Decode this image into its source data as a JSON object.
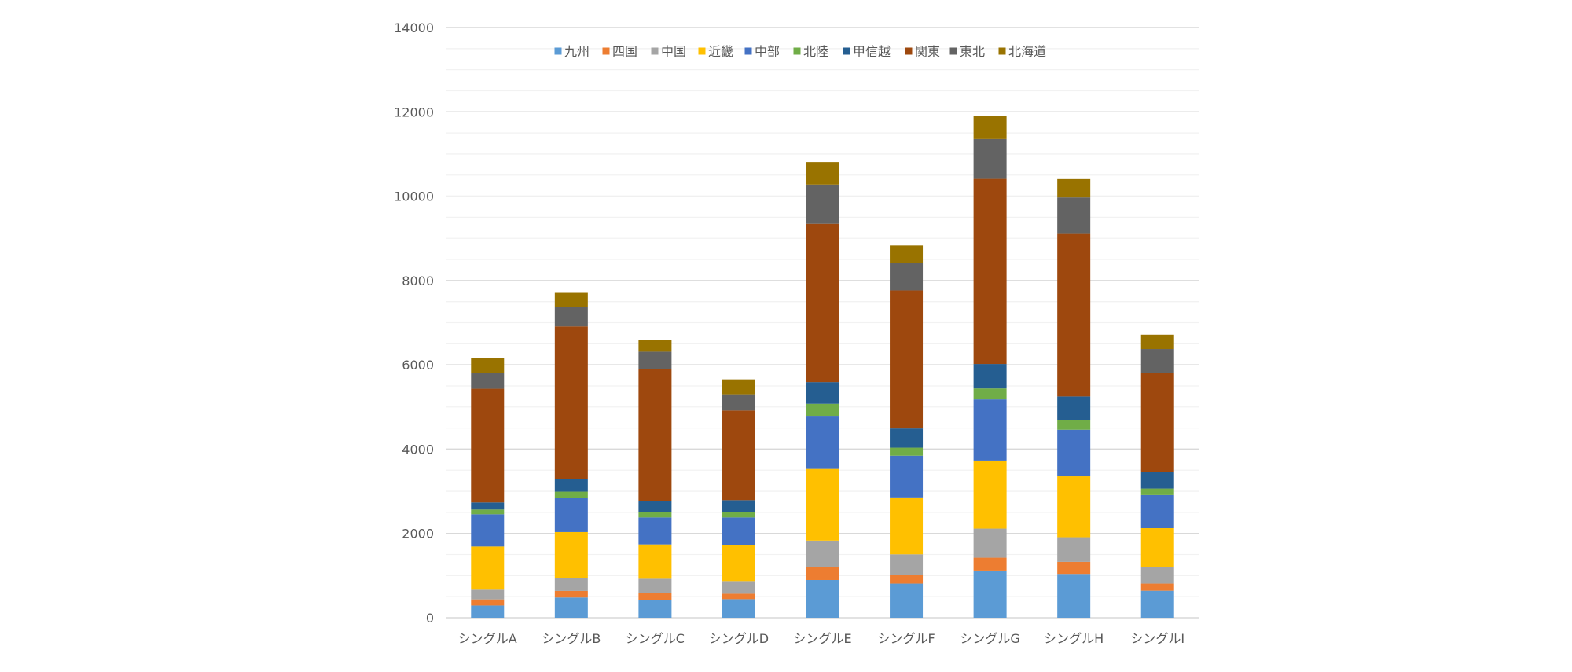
{
  "chart_data": {
    "type": "bar",
    "stacked": true,
    "title": "",
    "xlabel": "",
    "ylabel": "",
    "ylim": [
      0,
      14000
    ],
    "yticks": [
      0,
      2000,
      4000,
      6000,
      8000,
      10000,
      12000,
      14000
    ],
    "ytick_labels": [
      "0",
      "2000",
      "4000",
      "6000",
      "8000",
      "10000",
      "12000",
      "14000"
    ],
    "minor_gridline_step": 500,
    "grid": true,
    "legend_position": "top",
    "categories": [
      "シングルA",
      "シングルB",
      "シングルC",
      "シングルD",
      "シングルE",
      "シングルF",
      "シングルG",
      "シングルH",
      "シングルI"
    ],
    "series": [
      {
        "name": "九州",
        "color": "#5B9BD5",
        "values": [
          290,
          480,
          420,
          440,
          895,
          810,
          1120,
          1040,
          640
        ]
      },
      {
        "name": "四国",
        "color": "#ED7D31",
        "values": [
          145,
          155,
          165,
          130,
          305,
          215,
          305,
          285,
          170
        ]
      },
      {
        "name": "中国",
        "color": "#A5A5A5",
        "values": [
          230,
          298,
          340,
          300,
          630,
          480,
          690,
          585,
          400
        ]
      },
      {
        "name": "近畿",
        "color": "#FFC000",
        "values": [
          1025,
          1100,
          815,
          852,
          1700,
          1350,
          1615,
          1445,
          915
        ]
      },
      {
        "name": "中部",
        "color": "#4472C4",
        "values": [
          765,
          809,
          640,
          658,
          1260,
          990,
          1450,
          1105,
          785
        ]
      },
      {
        "name": "北陸",
        "color": "#70AD47",
        "values": [
          112,
          149,
          130,
          130,
          285,
          190,
          260,
          230,
          155
        ]
      },
      {
        "name": "甲信越",
        "color": "#255E91",
        "values": [
          168,
          291,
          255,
          280,
          515,
          455,
          580,
          560,
          400
        ]
      },
      {
        "name": "関東",
        "color": "#9E480E",
        "values": [
          2698,
          3630,
          3143,
          2125,
          3755,
          3275,
          4390,
          3855,
          2340
        ]
      },
      {
        "name": "東北",
        "color": "#636363",
        "values": [
          378,
          453,
          404,
          386,
          930,
          655,
          945,
          865,
          570
        ]
      },
      {
        "name": "北海道",
        "color": "#997300",
        "values": [
          341,
          343,
          286,
          354,
          535,
          410,
          555,
          435,
          340
        ]
      }
    ]
  },
  "colors": {
    "axis_text": "#595959",
    "major_grid": "#D9D9D9",
    "minor_grid": "#F2F2F2"
  }
}
